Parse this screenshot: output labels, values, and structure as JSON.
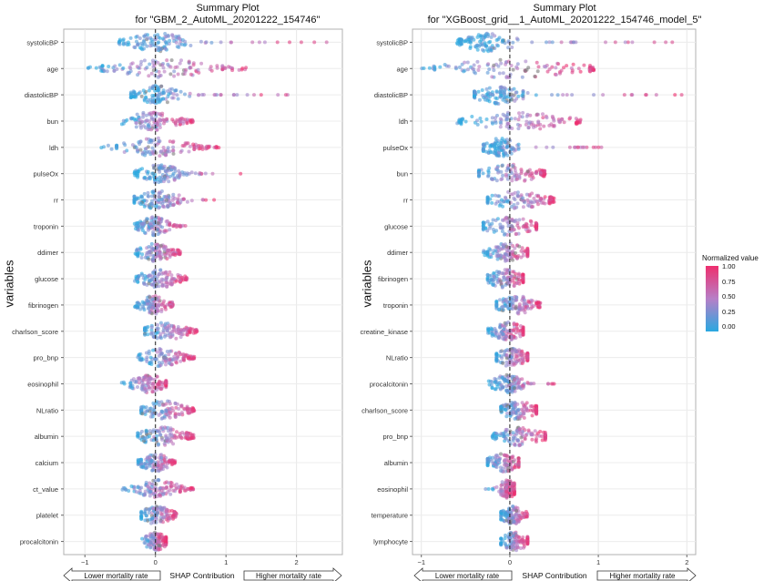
{
  "chart_data": [
    {
      "type": "scatter",
      "subtype": "shap-summary-beeswarm",
      "title_line1": "Summary Plot",
      "title_line2": "for \"GBM_2_AutoML_20201222_154746\"",
      "xlabel": "SHAP Contribution",
      "ylabel": "variables",
      "xlim": [
        -1.3,
        2.65
      ],
      "xticks": [
        -1,
        0,
        1,
        2
      ],
      "xtick_labels": [
        "−1",
        "0",
        "1",
        "2"
      ],
      "arrow_left": "Lower mortality rate",
      "arrow_right": "Higher mortality rate",
      "grid": true,
      "variables": [
        {
          "name": "systolicBP",
          "shap_min": -0.55,
          "shap_max": 2.5,
          "bulk_lo": -0.45,
          "bulk_hi": 0.5
        },
        {
          "name": "age",
          "shap_min": -1.1,
          "shap_max": 1.3,
          "bulk_lo": -0.75,
          "bulk_hi": 0.95
        },
        {
          "name": "diastolicBP",
          "shap_min": -0.35,
          "shap_max": 2.0,
          "bulk_lo": -0.3,
          "bulk_hi": 0.35
        },
        {
          "name": "bun",
          "shap_min": -0.5,
          "shap_max": 0.55,
          "bulk_lo": -0.45,
          "bulk_hi": 0.35
        },
        {
          "name": "ldh",
          "shap_min": -0.8,
          "shap_max": 0.9,
          "bulk_lo": -0.55,
          "bulk_hi": 0.55
        },
        {
          "name": "pulseOx",
          "shap_min": -0.3,
          "shap_max": 1.25,
          "bulk_lo": -0.25,
          "bulk_hi": 0.4
        },
        {
          "name": "rr",
          "shap_min": -0.3,
          "shap_max": 0.85,
          "bulk_lo": -0.3,
          "bulk_hi": 0.4
        },
        {
          "name": "troponin",
          "shap_min": -0.3,
          "shap_max": 0.45,
          "bulk_lo": -0.25,
          "bulk_hi": 0.2
        },
        {
          "name": "ddimer",
          "shap_min": -0.3,
          "shap_max": 0.35,
          "bulk_lo": -0.25,
          "bulk_hi": 0.25
        },
        {
          "name": "glucose",
          "shap_min": -0.3,
          "shap_max": 0.45,
          "bulk_lo": -0.25,
          "bulk_hi": 0.35
        },
        {
          "name": "fibrinogen",
          "shap_min": -0.3,
          "shap_max": 0.25,
          "bulk_lo": -0.25,
          "bulk_hi": 0.2
        },
        {
          "name": "charlson_score",
          "shap_min": -0.15,
          "shap_max": 0.6,
          "bulk_lo": -0.15,
          "bulk_hi": 0.45
        },
        {
          "name": "pro_bnp",
          "shap_min": -0.25,
          "shap_max": 0.55,
          "bulk_lo": -0.2,
          "bulk_hi": 0.4
        },
        {
          "name": "eosinophil",
          "shap_min": -0.5,
          "shap_max": 0.15,
          "bulk_lo": -0.35,
          "bulk_hi": 0.15
        },
        {
          "name": "NLratio",
          "shap_min": -0.2,
          "shap_max": 0.55,
          "bulk_lo": -0.2,
          "bulk_hi": 0.45
        },
        {
          "name": "albumin",
          "shap_min": -0.25,
          "shap_max": 0.55,
          "bulk_lo": -0.25,
          "bulk_hi": 0.45
        },
        {
          "name": "calcium",
          "shap_min": -0.25,
          "shap_max": 0.3,
          "bulk_lo": -0.2,
          "bulk_hi": 0.2
        },
        {
          "name": "ct_value",
          "shap_min": -0.5,
          "shap_max": 0.55,
          "bulk_lo": -0.3,
          "bulk_hi": 0.35
        },
        {
          "name": "platelet",
          "shap_min": -0.2,
          "shap_max": 0.3,
          "bulk_lo": -0.2,
          "bulk_hi": 0.25
        },
        {
          "name": "procalcitonin",
          "shap_min": -0.2,
          "shap_max": 0.15,
          "bulk_lo": -0.15,
          "bulk_hi": 0.15
        }
      ]
    },
    {
      "type": "scatter",
      "subtype": "shap-summary-beeswarm",
      "title_line1": "Summary Plot",
      "title_line2": "for \"XGBoost_grid__1_AutoML_20201222_154746_model_5\"",
      "xlabel": "SHAP Contribution",
      "ylabel": "variables",
      "xlim": [
        -1.1,
        2.1
      ],
      "xticks": [
        -1,
        0,
        1,
        2
      ],
      "xtick_labels": [
        "−1",
        "0",
        "1",
        "2"
      ],
      "arrow_left": "Lower mortality rate",
      "arrow_right": "Higher mortality rate",
      "grid": true,
      "variables": [
        {
          "name": "systolicBP",
          "shap_min": -0.6,
          "shap_max": 1.95,
          "bulk_lo": -0.55,
          "bulk_hi": 0.1
        },
        {
          "name": "age",
          "shap_min": -1.0,
          "shap_max": 0.95,
          "bulk_lo": -0.85,
          "bulk_hi": 0.9
        },
        {
          "name": "diastolicBP",
          "shap_min": -0.4,
          "shap_max": 1.95,
          "bulk_lo": -0.4,
          "bulk_hi": 0.15
        },
        {
          "name": "ldh",
          "shap_min": -0.6,
          "shap_max": 0.8,
          "bulk_lo": -0.55,
          "bulk_hi": 0.75
        },
        {
          "name": "pulseOx",
          "shap_min": -0.3,
          "shap_max": 1.05,
          "bulk_lo": -0.3,
          "bulk_hi": 0.1
        },
        {
          "name": "bun",
          "shap_min": -0.35,
          "shap_max": 0.4,
          "bulk_lo": -0.35,
          "bulk_hi": 0.35
        },
        {
          "name": "rr",
          "shap_min": -0.25,
          "shap_max": 0.5,
          "bulk_lo": -0.25,
          "bulk_hi": 0.45
        },
        {
          "name": "glucose",
          "shap_min": -0.3,
          "shap_max": 0.3,
          "bulk_lo": -0.3,
          "bulk_hi": 0.3
        },
        {
          "name": "ddimer",
          "shap_min": -0.3,
          "shap_max": 0.2,
          "bulk_lo": -0.25,
          "bulk_hi": 0.2
        },
        {
          "name": "fibrinogen",
          "shap_min": -0.25,
          "shap_max": 0.15,
          "bulk_lo": -0.25,
          "bulk_hi": 0.15
        },
        {
          "name": "troponin",
          "shap_min": -0.15,
          "shap_max": 0.35,
          "bulk_lo": -0.15,
          "bulk_hi": 0.3
        },
        {
          "name": "creatine_kinase",
          "shap_min": -0.25,
          "shap_max": 0.15,
          "bulk_lo": -0.2,
          "bulk_hi": 0.15
        },
        {
          "name": "NLratio",
          "shap_min": -0.15,
          "shap_max": 0.2,
          "bulk_lo": -0.15,
          "bulk_hi": 0.2
        },
        {
          "name": "procalcitonin",
          "shap_min": -0.25,
          "shap_max": 0.5,
          "bulk_lo": -0.2,
          "bulk_hi": 0.15
        },
        {
          "name": "charlson_score",
          "shap_min": -0.1,
          "shap_max": 0.3,
          "bulk_lo": -0.1,
          "bulk_hi": 0.3
        },
        {
          "name": "pro_bnp",
          "shap_min": -0.2,
          "shap_max": 0.4,
          "bulk_lo": -0.15,
          "bulk_hi": 0.4
        },
        {
          "name": "albumin",
          "shap_min": -0.25,
          "shap_max": 0.1,
          "bulk_lo": -0.25,
          "bulk_hi": 0.1
        },
        {
          "name": "eosinophil",
          "shap_min": -0.3,
          "shap_max": 0.05,
          "bulk_lo": -0.1,
          "bulk_hi": 0.05
        },
        {
          "name": "temperature",
          "shap_min": -0.1,
          "shap_max": 0.2,
          "bulk_lo": -0.1,
          "bulk_hi": 0.15
        },
        {
          "name": "lymphocyte",
          "shap_min": -0.1,
          "shap_max": 0.2,
          "bulk_lo": -0.1,
          "bulk_hi": 0.2
        }
      ]
    }
  ],
  "legend": {
    "title": "Normalized value",
    "ticks": [
      "1.00",
      "0.75",
      "0.50",
      "0.25",
      "0.00"
    ],
    "color_low": "#29a8e0",
    "color_mid": "#b77fc7",
    "color_high": "#ee2f6e",
    "color_na": "#7a7a7a"
  }
}
